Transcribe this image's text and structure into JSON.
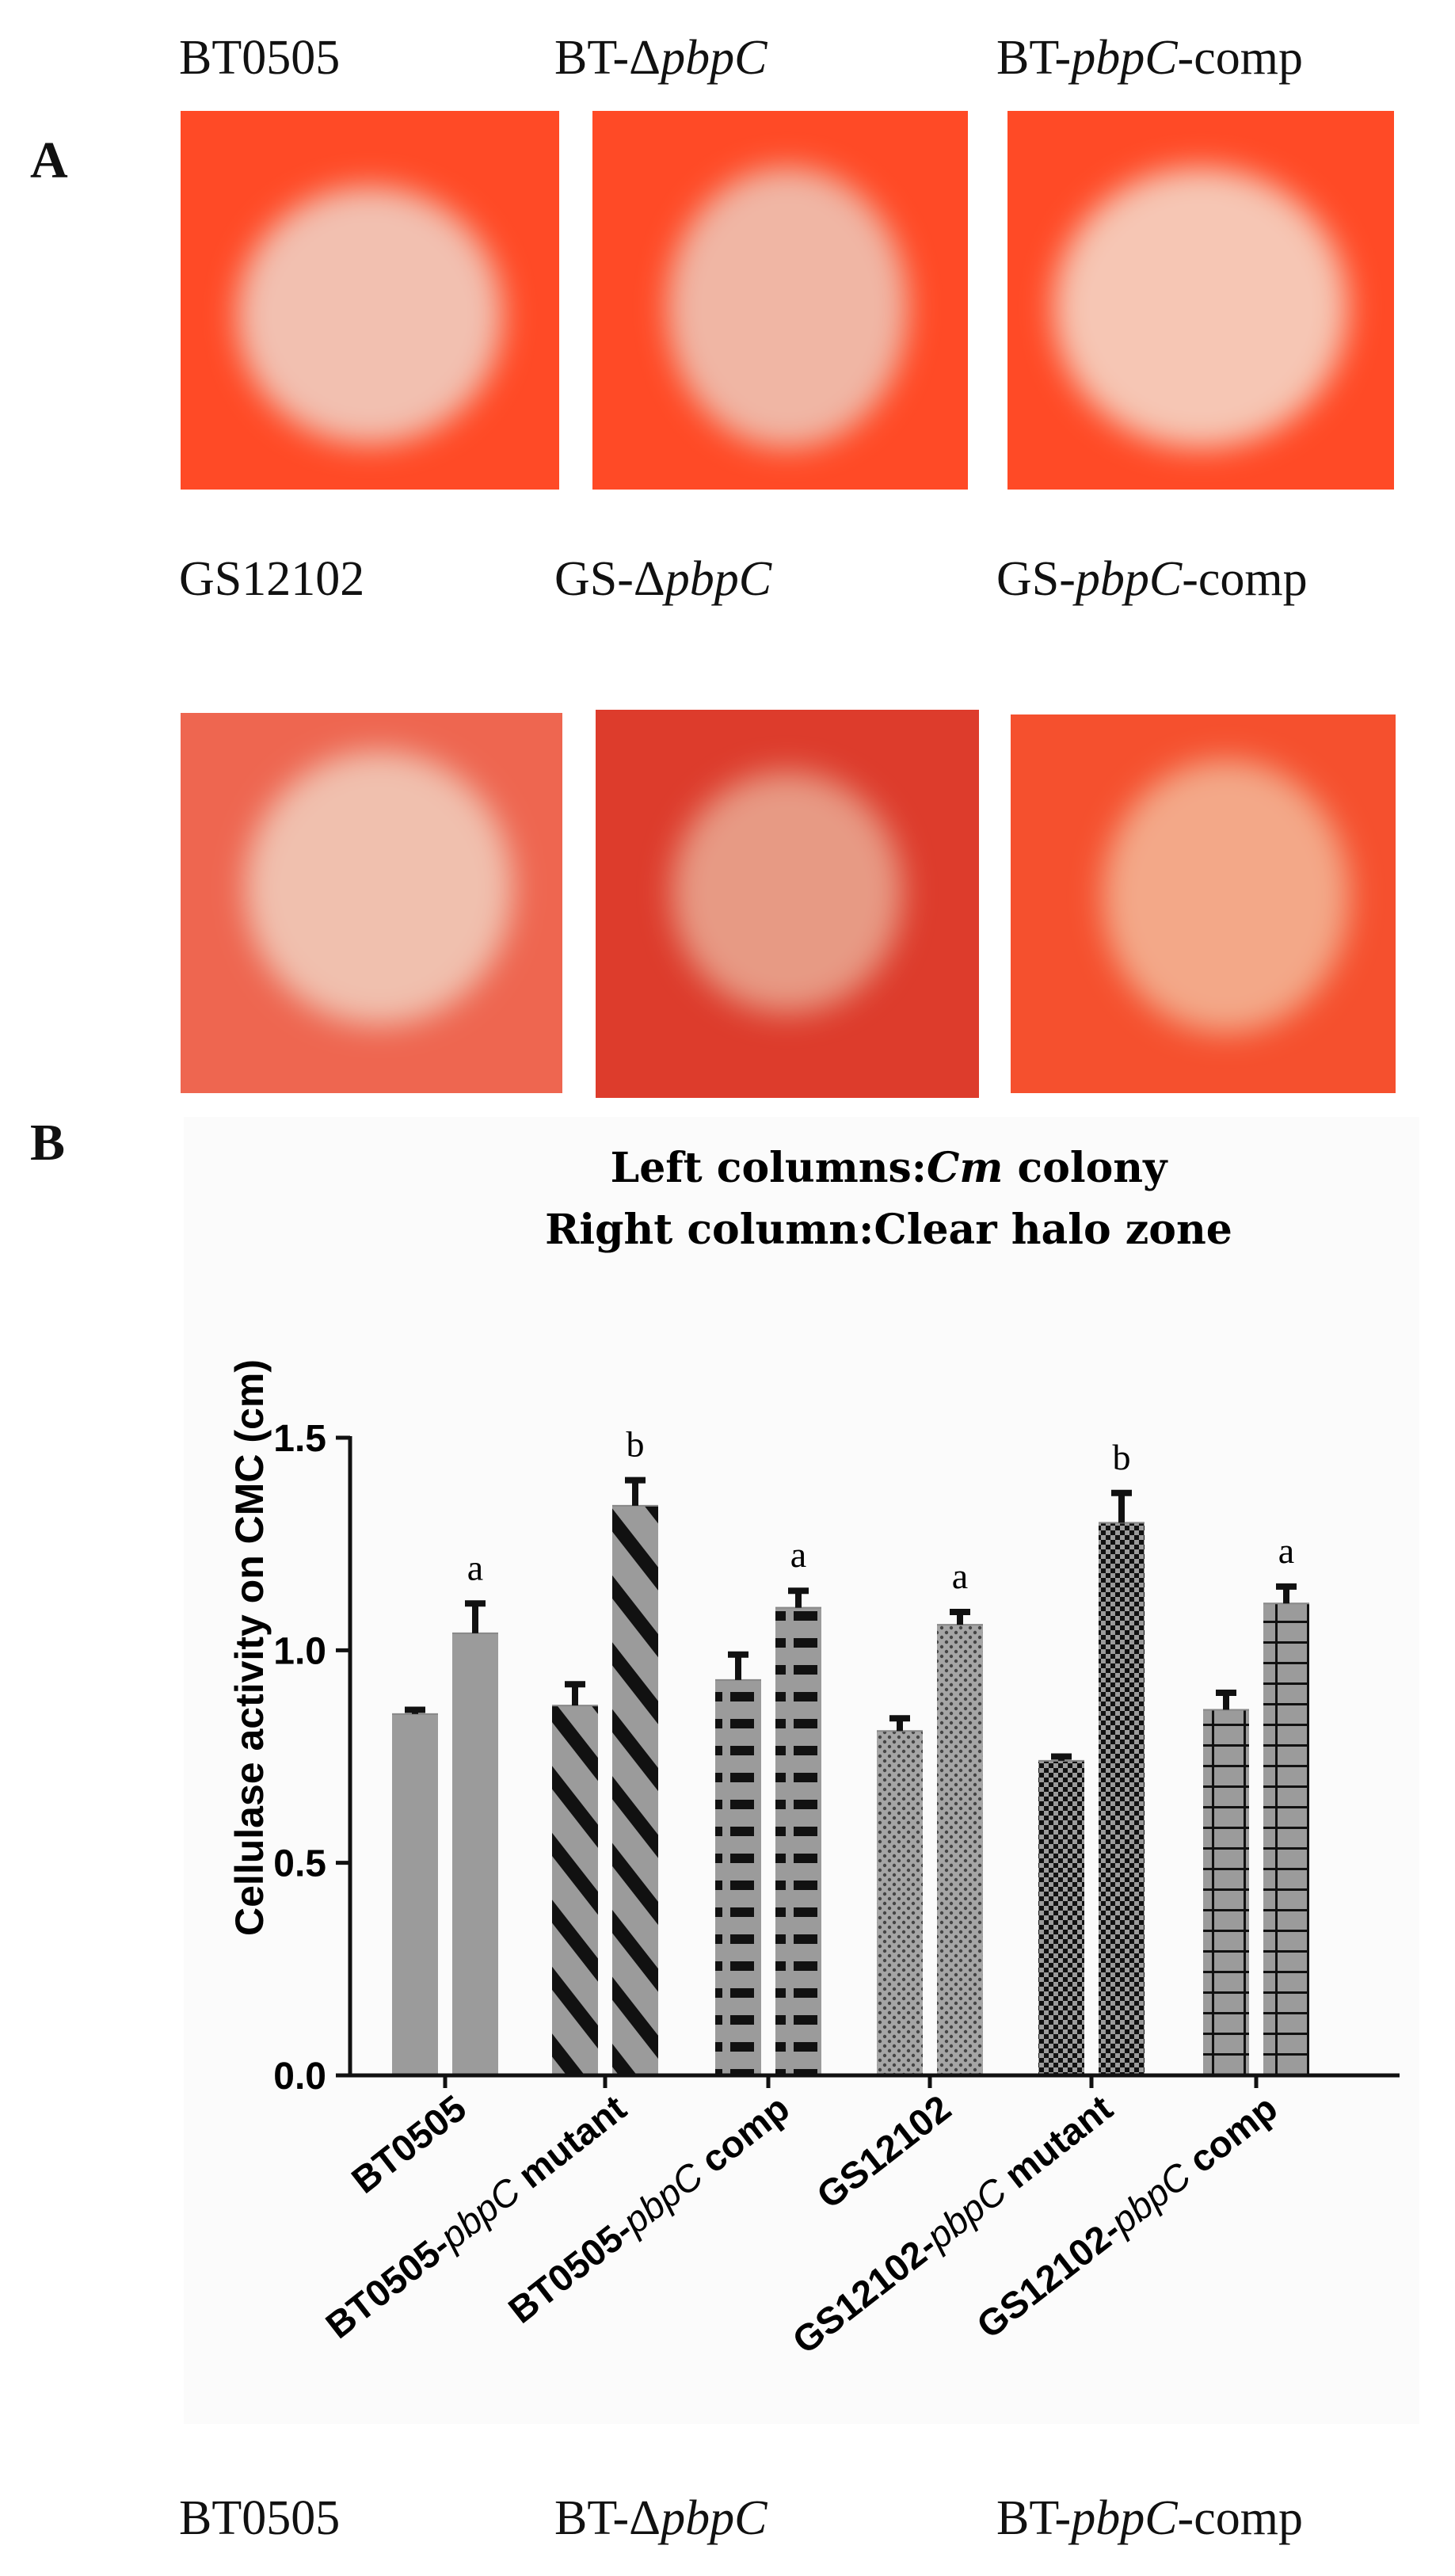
{
  "panel_a": {
    "letter": "A",
    "row1": [
      {
        "plain": "BT0505",
        "pre": "",
        "italic": "",
        "post": ""
      },
      {
        "plain": "",
        "pre": "BT-Δ",
        "italic": "pbpC",
        "post": ""
      },
      {
        "plain": "",
        "pre": "BT-",
        "italic": "pbpC",
        "post": "-comp"
      }
    ],
    "row2": [
      {
        "plain": "GS12102",
        "pre": "",
        "italic": "",
        "post": ""
      },
      {
        "plain": "",
        "pre": "GS-Δ",
        "italic": "pbpC",
        "post": ""
      },
      {
        "plain": "",
        "pre": "GS-",
        "italic": "pbpC",
        "post": "-comp"
      }
    ],
    "row3": [
      {
        "plain": "BT0505",
        "pre": "",
        "italic": "",
        "post": ""
      },
      {
        "plain": "",
        "pre": "BT-Δ",
        "italic": "pbpC",
        "post": ""
      },
      {
        "plain": "",
        "pre": "BT-",
        "italic": "pbpC",
        "post": "-comp"
      }
    ],
    "plate_colors": {
      "row1": [
        [
          "#ff4a26",
          "#f2c0b0"
        ],
        [
          "#ff4a26",
          "#f0b6a4"
        ],
        [
          "#ff4a26",
          "#f6c6b4"
        ]
      ],
      "row2": [
        [
          "#ee6650",
          "#f0c0ae"
        ],
        [
          "#dd3c2c",
          "#e79a84"
        ],
        [
          "#f5502e",
          "#f3a888"
        ]
      ]
    }
  },
  "panel_b": {
    "letter": "B"
  },
  "chart_data": {
    "type": "bar",
    "title_line1_pre": "Left columns:",
    "title_line1_italic": "Cm",
    "title_line1_post": " colony",
    "title_line2": "Right column:Clear halo zone",
    "ylabel": "Cellulase activity on CMC (cm)",
    "ylim": [
      0,
      1.5
    ],
    "yticks": [
      "0.0",
      "0.5",
      "1.0",
      "1.5"
    ],
    "ytick_values": [
      0,
      0.5,
      1.0,
      1.5
    ],
    "categories": [
      {
        "pre": "BT0505",
        "italic": "",
        "post": ""
      },
      {
        "pre": "BT0505-",
        "italic": "pbpC",
        "post": " mutant"
      },
      {
        "pre": "BT0505-",
        "italic": "pbpC",
        "post": " comp"
      },
      {
        "pre": "GS12102",
        "italic": "",
        "post": ""
      },
      {
        "pre": "GS12102-",
        "italic": "pbpC",
        "post": " mutant"
      },
      {
        "pre": "GS12102-",
        "italic": "pbpC",
        "post": " comp"
      }
    ],
    "series": [
      {
        "values": [
          0.85,
          0.87,
          0.93,
          0.81,
          0.74,
          0.86
        ],
        "errors": [
          0.01,
          0.05,
          0.06,
          0.03,
          0.01,
          0.04
        ]
      },
      {
        "values": [
          1.04,
          1.34,
          1.1,
          1.06,
          1.3,
          1.11
        ],
        "errors": [
          0.07,
          0.06,
          0.04,
          0.03,
          0.07,
          0.04
        ]
      }
    ],
    "significance_letters": [
      "a",
      "b",
      "a",
      "a",
      "b",
      "a"
    ],
    "patterns": [
      "solid",
      "diagonal",
      "horizontal",
      "dots",
      "checker",
      "grid"
    ],
    "bar_color": "#9b9b9b",
    "pattern_color": "#111111"
  }
}
